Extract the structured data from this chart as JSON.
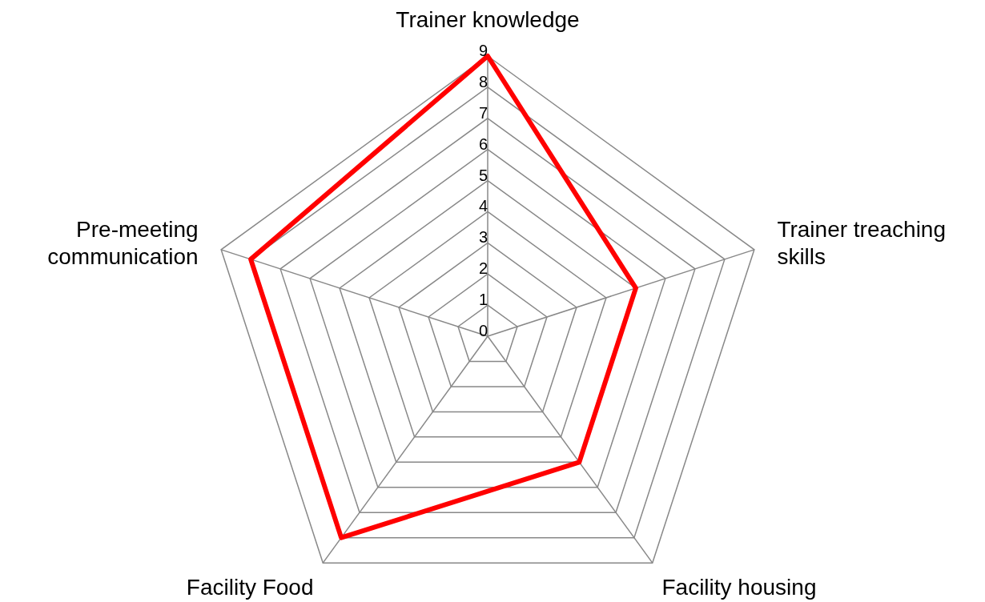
{
  "chart_data": {
    "type": "radar",
    "categories": [
      "Trainer knowledge",
      "Trainer treaching skills",
      "Facility housing",
      "Facility Food",
      "Pre-meeting communication"
    ],
    "series": [
      {
        "color": "#ff0000",
        "values": [
          9,
          5,
          5,
          8,
          8
        ]
      }
    ],
    "ylim": [
      0,
      9
    ],
    "yticks": [
      0,
      1,
      2,
      3,
      4,
      5,
      6,
      7,
      8,
      9
    ],
    "grid": true,
    "legend": false
  }
}
